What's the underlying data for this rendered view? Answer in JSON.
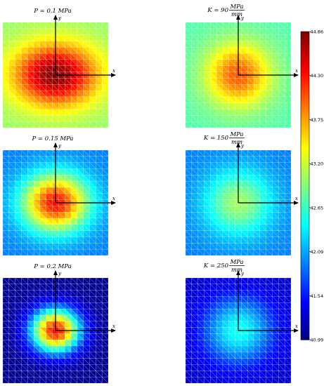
{
  "chart_data": {
    "type": "heatmap",
    "colormap": "jet",
    "mesh": "triangulated square grid",
    "zlim": [
      40.99,
      44.86
    ],
    "colorbar": {
      "ticks": [
        "44.86",
        "44.30",
        "43.75",
        "43.20",
        "42.65",
        "42.09",
        "41.54",
        "40.99"
      ]
    },
    "panels": [
      {
        "id": "p01",
        "lhs": "P = 0.1",
        "value_unit": "MPa",
        "frac_num": "",
        "frac_den": "",
        "peak": 44.86,
        "edge": 43.0,
        "sx": 1.0,
        "sy": 0.74
      },
      {
        "id": "p015",
        "lhs": "P = 0.15",
        "value_unit": "MPa",
        "frac_num": "",
        "frac_den": "",
        "peak": 44.35,
        "edge": 41.95,
        "sx": 0.78,
        "sy": 0.68
      },
      {
        "id": "p02",
        "lhs": "P = 0.2",
        "value_unit": "MPa",
        "frac_num": "",
        "frac_den": "",
        "peak": 44.35,
        "edge": 41.05,
        "sx": 0.58,
        "sy": 0.52
      },
      {
        "id": "k90",
        "lhs": "K = 90",
        "value_unit": "",
        "frac_num": "MPa",
        "frac_den": "mm",
        "peak": 44.05,
        "edge": 42.75,
        "sx": 0.78,
        "sy": 0.76
      },
      {
        "id": "k150",
        "lhs": "K = 150",
        "value_unit": "",
        "frac_num": "MPa",
        "frac_den": "mm",
        "peak": 43.05,
        "edge": 41.95,
        "sx": 0.8,
        "sy": 0.78
      },
      {
        "id": "k250",
        "lhs": "K = 250",
        "value_unit": "",
        "frac_num": "MPa",
        "frac_den": "mm",
        "peak": 42.5,
        "edge": 41.25,
        "sx": 0.82,
        "sy": 0.8
      }
    ],
    "axes_labels": {
      "x": "x",
      "y": "y"
    }
  }
}
